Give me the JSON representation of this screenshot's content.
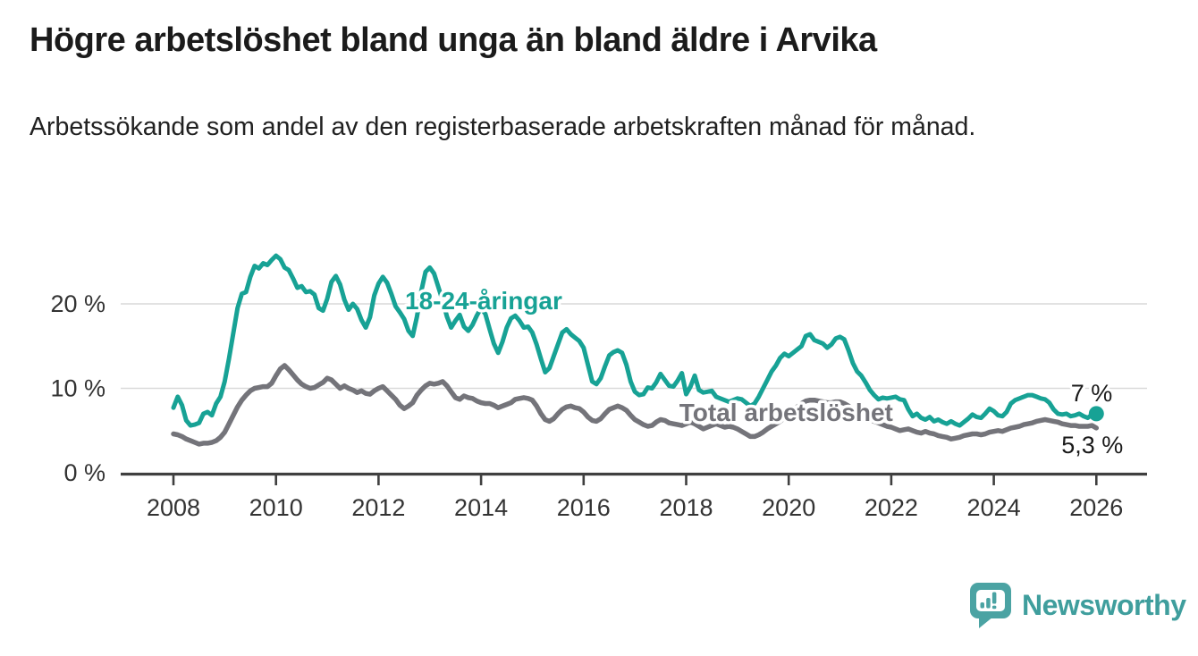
{
  "header": {
    "title": "Högre arbetslöshet bland unga än bland äldre i Arvika",
    "subtitle": "Arbetssökande som andel av den registerbaserade arbetskraften månad för månad."
  },
  "chart_data": {
    "type": "line",
    "title": "Högre arbetslöshet bland unga än bland äldre i Arvika",
    "unit": "%",
    "x_start": 2008.0,
    "x_step": 0.0833333,
    "x_axis": {
      "ticks": [
        "2008",
        "2010",
        "2012",
        "2014",
        "2016",
        "2018",
        "2020",
        "2022",
        "2024",
        "2026"
      ],
      "tick_years": [
        2008,
        2010,
        2012,
        2014,
        2016,
        2018,
        2020,
        2022,
        2024,
        2026
      ],
      "range": [
        2007.0,
        2027.0
      ]
    },
    "y_axis": {
      "ticks": [
        {
          "value": 0,
          "label": "0 %"
        },
        {
          "value": 10,
          "label": "10 %"
        },
        {
          "value": 20,
          "label": "20 %"
        }
      ],
      "gridlines": [
        10,
        20
      ],
      "range": [
        0,
        27
      ],
      "grid_on": true
    },
    "series": [
      {
        "name": "18-24-åringar",
        "color": "#17a295",
        "end_label": "7 %",
        "end_dot": true,
        "values": [
          7.7,
          9.0,
          8.0,
          6.2,
          5.6,
          5.7,
          5.9,
          7.0,
          7.2,
          6.8,
          8.2,
          9.0,
          10.8,
          13.5,
          16.5,
          19.5,
          21.2,
          21.4,
          23.2,
          24.5,
          24.2,
          24.8,
          24.6,
          25.2,
          25.7,
          25.3,
          24.3,
          24.0,
          23.0,
          21.9,
          22.1,
          21.4,
          21.5,
          21.1,
          19.5,
          19.2,
          20.6,
          22.6,
          23.3,
          22.3,
          20.5,
          19.3,
          20.0,
          19.4,
          18.1,
          17.2,
          18.4,
          21.0,
          22.4,
          23.2,
          22.5,
          21.2,
          19.7,
          19.0,
          18.2,
          16.8,
          16.2,
          18.5,
          21.5,
          23.8,
          24.3,
          23.6,
          22.0,
          20.4,
          18.5,
          17.2,
          18.0,
          18.7,
          17.3,
          16.8,
          17.5,
          18.6,
          19.5,
          18.8,
          17.0,
          15.3,
          14.2,
          15.5,
          17.2,
          18.3,
          18.6,
          18.0,
          17.2,
          17.3,
          16.6,
          15.2,
          13.5,
          11.9,
          12.4,
          13.8,
          15.2,
          16.6,
          17.0,
          16.4,
          16.0,
          15.6,
          14.8,
          12.8,
          10.8,
          10.5,
          11.2,
          12.6,
          13.9,
          14.3,
          14.5,
          14.2,
          12.8,
          10.8,
          9.6,
          9.2,
          9.3,
          10.1,
          10.0,
          10.7,
          11.7,
          11.0,
          10.3,
          10.2,
          10.9,
          11.8,
          9.3,
          10.2,
          11.5,
          9.8,
          9.5,
          9.6,
          9.7,
          9.0,
          8.8,
          8.6,
          8.4,
          8.6,
          8.8,
          8.7,
          8.3,
          7.9,
          8.2,
          9.0,
          10.0,
          11.0,
          12.0,
          12.7,
          13.6,
          14.1,
          13.8,
          14.2,
          14.6,
          15.0,
          16.2,
          16.4,
          15.7,
          15.5,
          15.3,
          14.8,
          15.2,
          15.9,
          16.1,
          15.8,
          14.5,
          13.0,
          12.0,
          11.5,
          10.7,
          9.8,
          9.2,
          8.7,
          8.9,
          8.8,
          8.9,
          9.0,
          8.7,
          8.6,
          7.5,
          6.7,
          7.0,
          6.5,
          6.3,
          6.6,
          6.1,
          6.3,
          6.0,
          5.8,
          6.1,
          5.8,
          5.6,
          6.0,
          6.4,
          6.9,
          6.6,
          6.5,
          7.0,
          7.6,
          7.3,
          6.8,
          6.7,
          7.2,
          8.2,
          8.6,
          8.8,
          9.0,
          9.2,
          9.2,
          9.0,
          8.8,
          8.7,
          8.3,
          7.5,
          7.0,
          6.9,
          7.0,
          6.7,
          6.8,
          7.0,
          6.7,
          6.5,
          6.9,
          7.0
        ]
      },
      {
        "name": "Total arbetslöshet",
        "color": "#74747a",
        "end_label": "5,3 %",
        "end_dot": false,
        "values": [
          4.6,
          4.5,
          4.3,
          4.0,
          3.8,
          3.6,
          3.4,
          3.5,
          3.5,
          3.6,
          3.8,
          4.2,
          4.8,
          5.8,
          6.8,
          7.8,
          8.6,
          9.2,
          9.7,
          10.0,
          10.1,
          10.2,
          10.2,
          10.6,
          11.5,
          12.3,
          12.7,
          12.2,
          11.6,
          11.0,
          10.5,
          10.2,
          10.0,
          10.1,
          10.4,
          10.7,
          11.2,
          11.0,
          10.5,
          10.0,
          10.3,
          10.0,
          9.8,
          9.5,
          9.7,
          9.4,
          9.3,
          9.7,
          10.0,
          10.2,
          9.7,
          9.2,
          8.7,
          8.0,
          7.6,
          7.9,
          8.3,
          9.2,
          9.8,
          10.3,
          10.6,
          10.5,
          10.6,
          10.8,
          10.3,
          9.6,
          8.9,
          8.7,
          9.1,
          8.9,
          8.8,
          8.5,
          8.3,
          8.2,
          8.2,
          8.0,
          7.7,
          7.9,
          8.1,
          8.3,
          8.7,
          8.8,
          8.9,
          8.8,
          8.6,
          7.9,
          7.0,
          6.3,
          6.1,
          6.4,
          7.0,
          7.5,
          7.8,
          7.9,
          7.7,
          7.6,
          7.2,
          6.6,
          6.2,
          6.1,
          6.4,
          7.0,
          7.5,
          7.7,
          7.9,
          7.7,
          7.4,
          6.8,
          6.3,
          6.0,
          5.7,
          5.5,
          5.6,
          6.0,
          6.3,
          6.2,
          5.9,
          5.8,
          5.7,
          5.6,
          5.8,
          6.0,
          5.8,
          5.5,
          5.2,
          5.4,
          5.6,
          5.8,
          5.6,
          5.4,
          5.5,
          5.4,
          5.2,
          4.9,
          4.6,
          4.3,
          4.3,
          4.5,
          4.8,
          5.2,
          5.5,
          5.8,
          6.1,
          6.5,
          6.9,
          7.3,
          7.8,
          8.2,
          8.5,
          8.6,
          8.6,
          8.5,
          8.4,
          8.3,
          8.3,
          8.4,
          8.4,
          8.2,
          7.9,
          7.5,
          7.2,
          6.9,
          6.6,
          6.3,
          6.1,
          5.9,
          5.7,
          5.5,
          5.4,
          5.2,
          5.0,
          5.1,
          5.2,
          5.0,
          4.8,
          4.7,
          4.9,
          4.7,
          4.6,
          4.4,
          4.3,
          4.2,
          4.0,
          4.1,
          4.2,
          4.4,
          4.5,
          4.6,
          4.6,
          4.5,
          4.6,
          4.8,
          4.9,
          5.0,
          4.9,
          5.1,
          5.3,
          5.4,
          5.5,
          5.7,
          5.8,
          5.9,
          6.1,
          6.2,
          6.3,
          6.2,
          6.1,
          6.0,
          5.8,
          5.7,
          5.6,
          5.6,
          5.5,
          5.5,
          5.5,
          5.6,
          5.3
        ]
      }
    ],
    "annotations": [
      {
        "text": "18-24-åringar",
        "color": "#17a295",
        "x": 2014.05,
        "y": 20.3
      },
      {
        "text": "Total arbetslöshet",
        "color": "#74747a",
        "x": 2019.95,
        "y": 7.1
      }
    ],
    "legend_position": "inline-labels"
  },
  "style_colors": {
    "accent_teal": "#17a295",
    "series_gray": "#74747a",
    "gridline": "#d9d9d9",
    "axis": "#3f3f3f",
    "text_dark": "#1b1b1b",
    "tick_text": "#333333"
  },
  "branding": {
    "logo_text": "Newsworthy",
    "logo_color": "#3f9e9d",
    "logo_icon": "speech-bubble-bar-chart"
  }
}
